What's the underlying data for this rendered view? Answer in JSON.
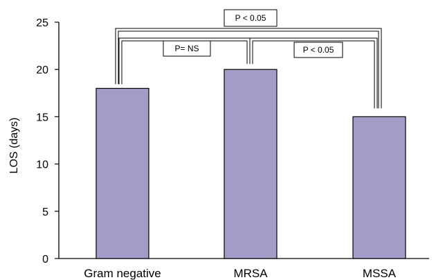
{
  "chart_data": {
    "type": "bar",
    "categories": [
      "Gram negative",
      "MRSA",
      "MSSA"
    ],
    "values": [
      18,
      20,
      15
    ],
    "title": "",
    "xlabel": "",
    "ylabel": "LOS (days)",
    "ylim": [
      0,
      25
    ],
    "yticks": [
      0,
      5,
      10,
      15,
      20,
      25
    ],
    "grid": false,
    "bar_color": "#a59bc8",
    "comparisons": [
      {
        "between": [
          "Gram negative",
          "MSSA"
        ],
        "label": "P < 0.05"
      },
      {
        "between": [
          "Gram negative",
          "MRSA"
        ],
        "label": "P= NS"
      },
      {
        "between": [
          "MRSA",
          "MSSA"
        ],
        "label": "P < 0.05"
      }
    ]
  }
}
